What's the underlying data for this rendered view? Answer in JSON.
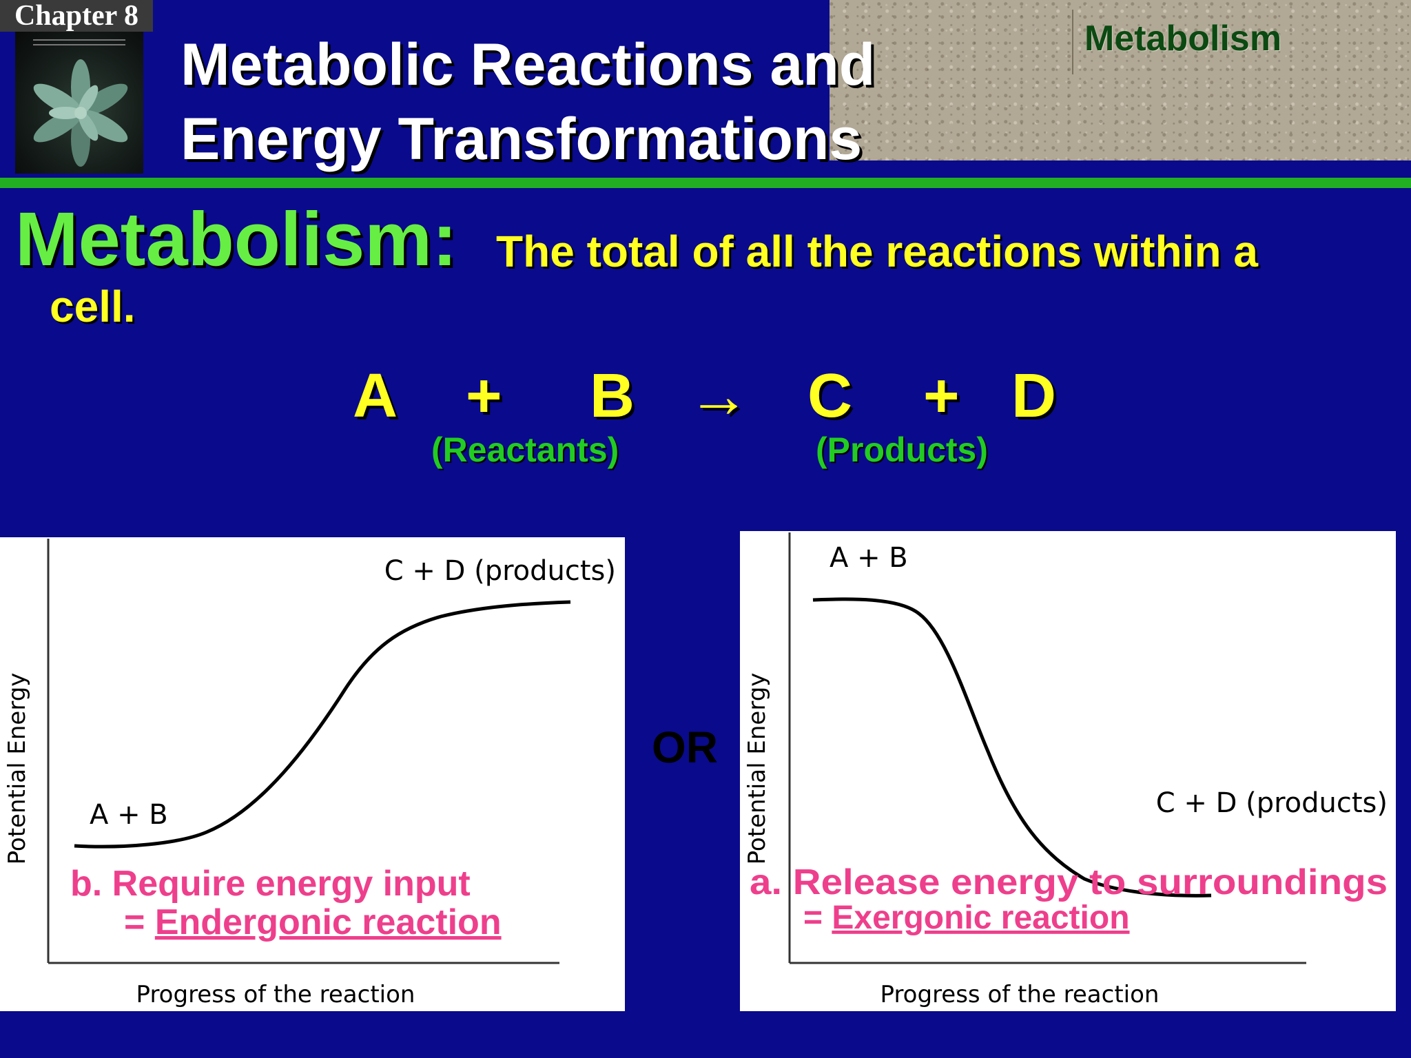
{
  "header": {
    "chapter": "Chapter 8",
    "title_line1": "Metabolic Reactions and",
    "title_line2": "Energy Transformations",
    "section": "Metabolism"
  },
  "definition": {
    "term": "Metabolism:",
    "text": "The total of all the reactions within a",
    "text_cont": "cell."
  },
  "equation": {
    "a": "A",
    "plus1": "+",
    "b": "B",
    "arrow": "→",
    "c": "C",
    "plus2": "+",
    "d": "D",
    "reactants": "(Reactants)",
    "products": "(Products)"
  },
  "or_label": "OR",
  "charts": {
    "left": {
      "ylabel": "Potential Energy",
      "xlabel": "Progress of the reaction",
      "start_label": "A + B",
      "end_label": "C + D (products)",
      "caption_line1": "b. Require energy input",
      "caption_prefix": "= ",
      "caption_term": "Endergonic reaction"
    },
    "right": {
      "ylabel": "Potential Energy",
      "xlabel": "Progress of the reaction",
      "start_label": "A + B",
      "end_label": "C + D (products)",
      "caption_line1": "a. Release energy to surroundings",
      "caption_prefix": "= ",
      "caption_term": "Exergonic reaction"
    }
  },
  "colors": {
    "background": "#0a0a8c",
    "title_text": "#ffffff",
    "definition_term": "#66ee44",
    "definition_text": "#ffff22",
    "equation_sublabel": "#22cc22",
    "caption_pink": "#ee3f8c"
  }
}
